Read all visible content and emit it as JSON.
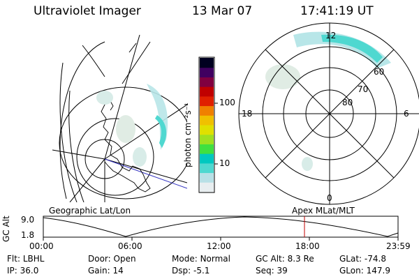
{
  "header": {
    "instrument": "Ultraviolet Imager",
    "date": "13 Mar 07",
    "time": "17:41:19 UT"
  },
  "colorbar": {
    "unit_label": "photon cm⁻²s⁻¹",
    "tick_100": "100",
    "tick_10": "10",
    "colors": [
      "#e8eef0",
      "#b8e0e6",
      "#4fd8d0",
      "#00c8c0",
      "#40e040",
      "#a0e020",
      "#e0e000",
      "#f0c000",
      "#f08000",
      "#e02000",
      "#c00000",
      "#800040",
      "#400060",
      "#000020"
    ]
  },
  "left_panel": {
    "caption": "Geographic Lat/Lon"
  },
  "right_panel": {
    "caption": "Apex MLat/MLT",
    "mlt_labels": {
      "top": "12",
      "left": "18",
      "right": "6",
      "bottom": "0"
    },
    "lat_labels": [
      "60",
      "70",
      "80"
    ]
  },
  "altitude_plot": {
    "ylabel": "GC Alt",
    "y_ticks": [
      "9.0",
      "1.8"
    ],
    "x_ticks": [
      "00:00",
      "06:00",
      "12:00",
      "18:00",
      "23:59"
    ],
    "marker_color": "#c00000"
  },
  "status": {
    "filter_label": "Flt:",
    "filter_value": "LBHL",
    "door_label": "Door:",
    "door_value": "Open",
    "mode_label": "Mode:",
    "mode_value": "Normal",
    "gcalt_label": "GC Alt:",
    "gcalt_value": "8.3 Re",
    "glat_label": "GLat:",
    "glat_value": "-74.8",
    "ip_label": "IP:",
    "ip_value": "36.0",
    "gain_label": "Gain:",
    "gain_value": "14",
    "dsp_label": "Dsp:",
    "dsp_value": "-5.1",
    "seq_label": "Seq:",
    "seq_value": "39",
    "glon_label": "GLon:",
    "glon_value": "147.9"
  }
}
